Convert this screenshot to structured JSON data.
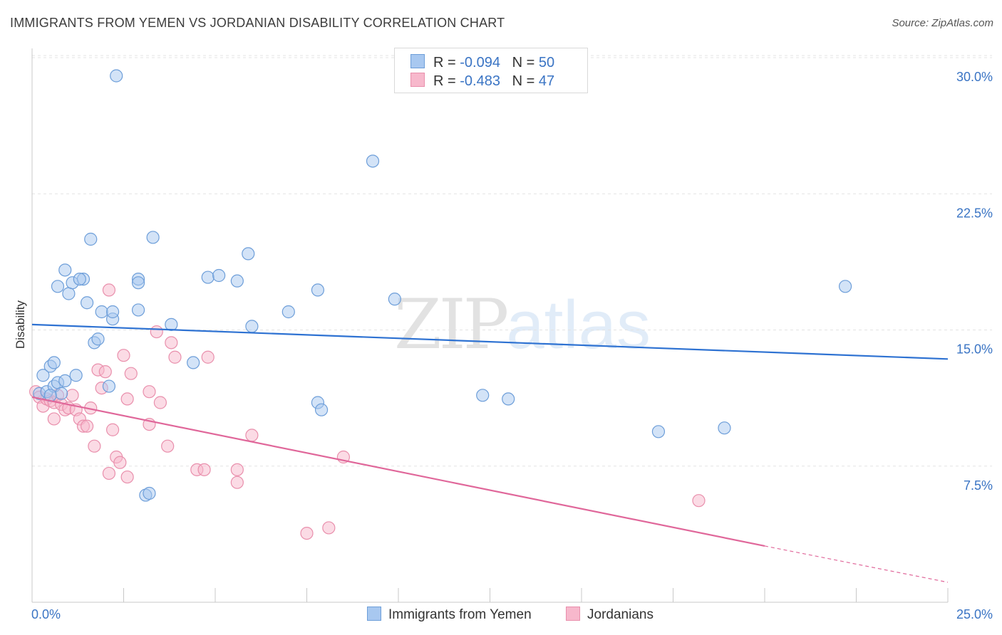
{
  "header": {
    "title": "IMMIGRANTS FROM YEMEN VS JORDANIAN DISABILITY CORRELATION CHART",
    "source": "Source: ZipAtlas.com"
  },
  "legend_top": {
    "rows": [
      {
        "r_label": "R =",
        "r_value": "-0.094",
        "n_label": "N =",
        "n_value": "50"
      },
      {
        "r_label": "R =",
        "r_value": "-0.483",
        "n_label": "N =",
        "n_value": "47"
      }
    ]
  },
  "watermark": {
    "zip": "ZIP",
    "atlas": "atlas"
  },
  "colors": {
    "blue_fill": "#a8c8f0",
    "blue_stroke": "#6d9ed9",
    "blue_line": "#2e72d2",
    "pink_fill": "#f7b8cc",
    "pink_stroke": "#e98fac",
    "pink_line": "#e0679a",
    "tick_label": "#3a74c4",
    "grid": "#e3e3e3"
  },
  "chart_data": {
    "type": "scatter",
    "title": "IMMIGRANTS FROM YEMEN VS JORDANIAN DISABILITY CORRELATION CHART",
    "xlabel": "",
    "ylabel": "Disability",
    "xlim": [
      0,
      25
    ],
    "ylim": [
      0,
      31
    ],
    "x_tick_labels": [
      "0.0%",
      "25.0%"
    ],
    "y_ticks": [
      7.5,
      15.0,
      22.5,
      30.0
    ],
    "y_tick_labels": [
      "7.5%",
      "15.0%",
      "22.5%",
      "30.0%"
    ],
    "legend": [
      "Immigrants from Yemen",
      "Jordanians"
    ],
    "series": [
      {
        "name": "Immigrants from Yemen",
        "r": -0.094,
        "n": 50,
        "trend": {
          "x0": 0,
          "y0": 15.3,
          "x1": 25,
          "y1": 13.4
        },
        "points": [
          [
            0.2,
            11.5
          ],
          [
            0.3,
            12.5
          ],
          [
            0.4,
            11.6
          ],
          [
            0.5,
            13.0
          ],
          [
            0.6,
            11.9
          ],
          [
            0.7,
            12.1
          ],
          [
            0.8,
            11.5
          ],
          [
            0.7,
            17.4
          ],
          [
            0.9,
            18.3
          ],
          [
            1.0,
            17.0
          ],
          [
            1.1,
            17.6
          ],
          [
            1.2,
            12.5
          ],
          [
            0.9,
            12.2
          ],
          [
            0.6,
            13.2
          ],
          [
            1.4,
            17.8
          ],
          [
            1.5,
            16.5
          ],
          [
            1.6,
            20.0
          ],
          [
            1.7,
            14.3
          ],
          [
            1.8,
            14.5
          ],
          [
            1.3,
            17.8
          ],
          [
            1.9,
            16.0
          ],
          [
            2.2,
            15.6
          ],
          [
            2.2,
            16.0
          ],
          [
            2.1,
            11.9
          ],
          [
            2.3,
            29.0
          ],
          [
            2.9,
            17.8
          ],
          [
            2.9,
            17.6
          ],
          [
            2.9,
            16.1
          ],
          [
            3.3,
            20.1
          ],
          [
            3.1,
            5.9
          ],
          [
            3.2,
            6.0
          ],
          [
            3.8,
            15.3
          ],
          [
            4.4,
            13.2
          ],
          [
            4.8,
            17.9
          ],
          [
            5.1,
            18.0
          ],
          [
            5.6,
            17.7
          ],
          [
            5.9,
            19.2
          ],
          [
            6.0,
            15.2
          ],
          [
            7.0,
            16.0
          ],
          [
            7.8,
            17.2
          ],
          [
            7.8,
            11.0
          ],
          [
            7.9,
            10.6
          ],
          [
            9.3,
            24.3
          ],
          [
            9.9,
            16.7
          ],
          [
            12.3,
            11.4
          ],
          [
            13.0,
            11.2
          ],
          [
            17.1,
            9.4
          ],
          [
            18.9,
            9.6
          ],
          [
            22.2,
            17.4
          ],
          [
            0.5,
            11.4
          ]
        ]
      },
      {
        "name": "Jordanians",
        "r": -0.483,
        "n": 47,
        "trend": {
          "x0": 0,
          "y0": 11.3,
          "x1": 20,
          "y1": 3.1
        },
        "trend_dashed_to": {
          "x": 25,
          "y": 1.1
        },
        "points": [
          [
            0.1,
            11.6
          ],
          [
            0.2,
            11.3
          ],
          [
            0.3,
            10.8
          ],
          [
            0.4,
            11.2
          ],
          [
            0.5,
            11.1
          ],
          [
            0.6,
            10.1
          ],
          [
            0.6,
            11.0
          ],
          [
            0.7,
            11.4
          ],
          [
            0.8,
            10.9
          ],
          [
            0.9,
            10.6
          ],
          [
            1.0,
            10.7
          ],
          [
            1.1,
            11.4
          ],
          [
            1.2,
            10.6
          ],
          [
            1.3,
            10.1
          ],
          [
            1.4,
            9.7
          ],
          [
            1.5,
            9.7
          ],
          [
            1.6,
            10.7
          ],
          [
            1.7,
            8.6
          ],
          [
            1.8,
            12.8
          ],
          [
            1.9,
            11.8
          ],
          [
            2.0,
            12.7
          ],
          [
            2.1,
            7.1
          ],
          [
            2.2,
            9.5
          ],
          [
            2.1,
            17.2
          ],
          [
            2.3,
            8.0
          ],
          [
            2.4,
            7.7
          ],
          [
            2.5,
            13.6
          ],
          [
            2.6,
            6.9
          ],
          [
            2.6,
            11.2
          ],
          [
            2.7,
            12.6
          ],
          [
            3.2,
            11.6
          ],
          [
            3.2,
            9.8
          ],
          [
            3.4,
            14.9
          ],
          [
            3.5,
            11.0
          ],
          [
            3.7,
            8.6
          ],
          [
            3.8,
            14.3
          ],
          [
            3.9,
            13.5
          ],
          [
            4.5,
            7.3
          ],
          [
            4.7,
            7.3
          ],
          [
            4.8,
            13.5
          ],
          [
            5.6,
            6.6
          ],
          [
            5.6,
            7.3
          ],
          [
            6.0,
            9.2
          ],
          [
            7.5,
            3.8
          ],
          [
            8.1,
            4.1
          ],
          [
            8.5,
            8.0
          ],
          [
            18.2,
            5.6
          ]
        ]
      }
    ]
  }
}
